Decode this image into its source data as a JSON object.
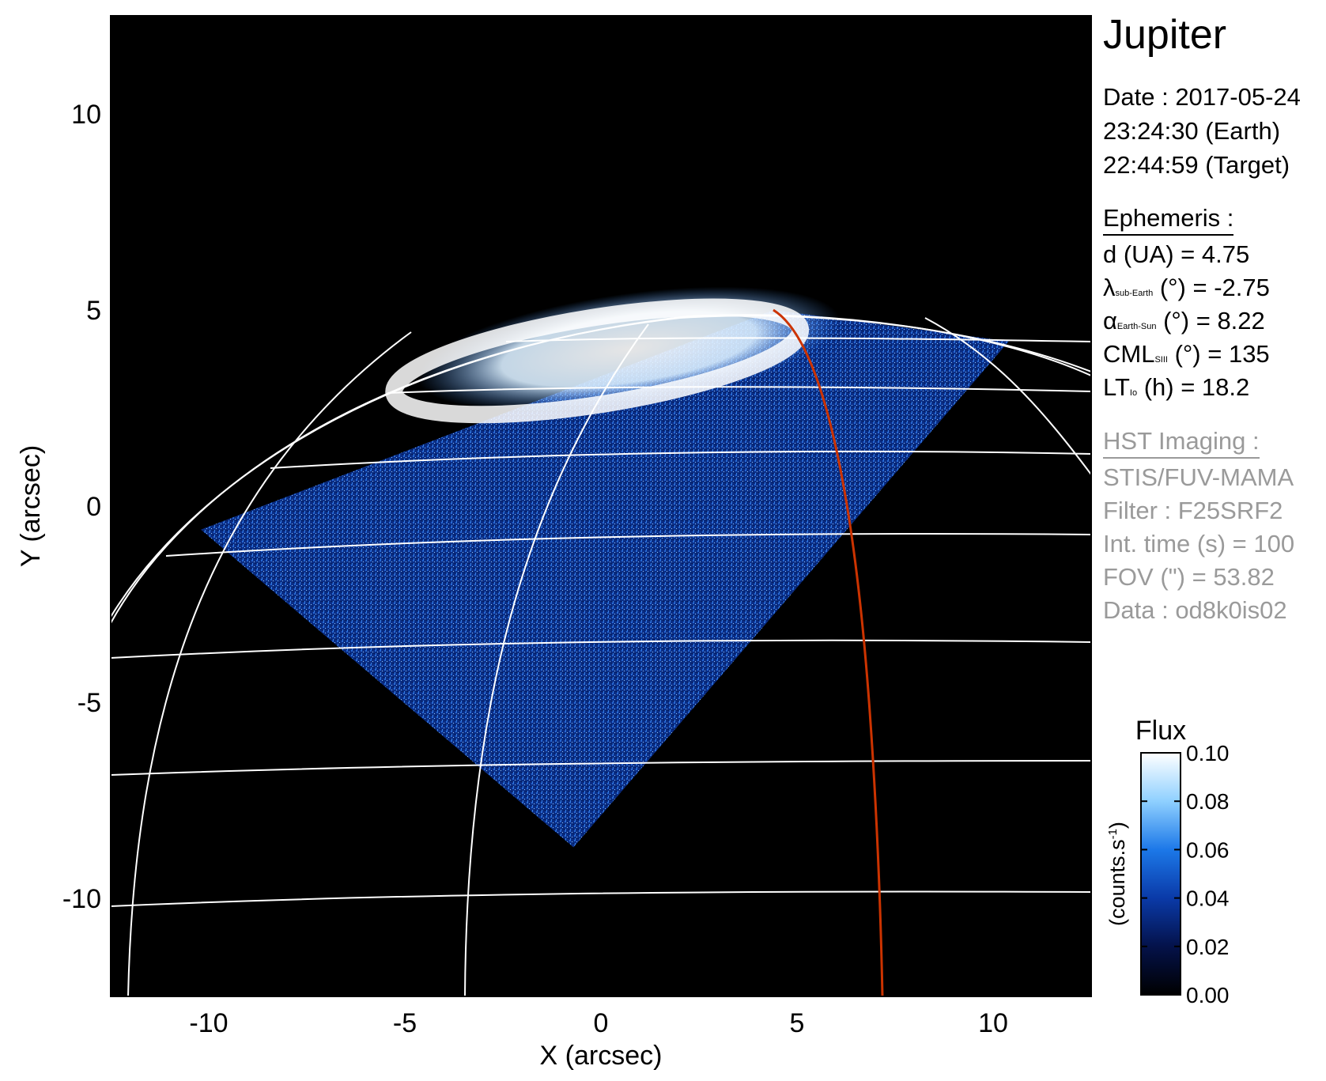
{
  "chart_data": {
    "type": "heatmap",
    "title": "",
    "xlabel": "X (arcsec)",
    "ylabel": "Y (arcsec)",
    "xlim": [
      -12.5,
      12.5
    ],
    "ylim": [
      -12.5,
      12.5
    ],
    "xticks": [
      -10,
      -5,
      0,
      5,
      10
    ],
    "yticks": [
      10,
      5,
      0,
      -5,
      -10
    ],
    "grid": "planetographic lat/lon grid (white)",
    "highlight_line_color": "#cc3300",
    "detector_footprint_corners": [
      [
        -10.2,
        -0.6
      ],
      [
        -0.7,
        -8.7
      ],
      [
        10.4,
        4.2
      ],
      [
        4.4,
        5.0
      ]
    ],
    "aurora_oval_center": [
      -0.5,
      3.5
    ],
    "colorbar": {
      "title": "Flux",
      "label": "(counts.s",
      "label_superscript": "-1",
      "label_close": ")",
      "ticks": [
        "0.10",
        "0.08",
        "0.06",
        "0.04",
        "0.02",
        "0.00"
      ],
      "range": [
        0.0,
        0.1
      ],
      "colors": [
        "#000000",
        "#04124a",
        "#0a3aa8",
        "#1c78e8",
        "#8fd0ff",
        "#ffffff"
      ]
    }
  },
  "info": {
    "target": "Jupiter",
    "date_line": "Date : 2017-05-24",
    "earth_time": "23:24:30 (Earth)",
    "target_time": "22:44:59 (Target)",
    "ephemeris_header": "Ephemeris :",
    "d_line": "d (UA)    = 4.75",
    "lambda_symbol": "λ",
    "lambda_sub": "sub-Earth",
    "lambda_rest": " (°) = -2.75",
    "alpha_symbol": "α",
    "alpha_sub": "Earth-Sun",
    "alpha_rest": " (°) = 8.22",
    "cml_main": "CML",
    "cml_sub": "SIII",
    "cml_rest": " (°) = 135",
    "lt_main": "LT",
    "lt_sub": "Io",
    "lt_rest": " (h) = 18.2",
    "hst_header": "HST Imaging :",
    "instrument": "STIS/FUV-MAMA",
    "filter": "Filter : F25SRF2",
    "int_time": "Int. time (s) = 100",
    "fov": "FOV (\") = 53.82",
    "data_id": "Data : od8k0is02"
  }
}
